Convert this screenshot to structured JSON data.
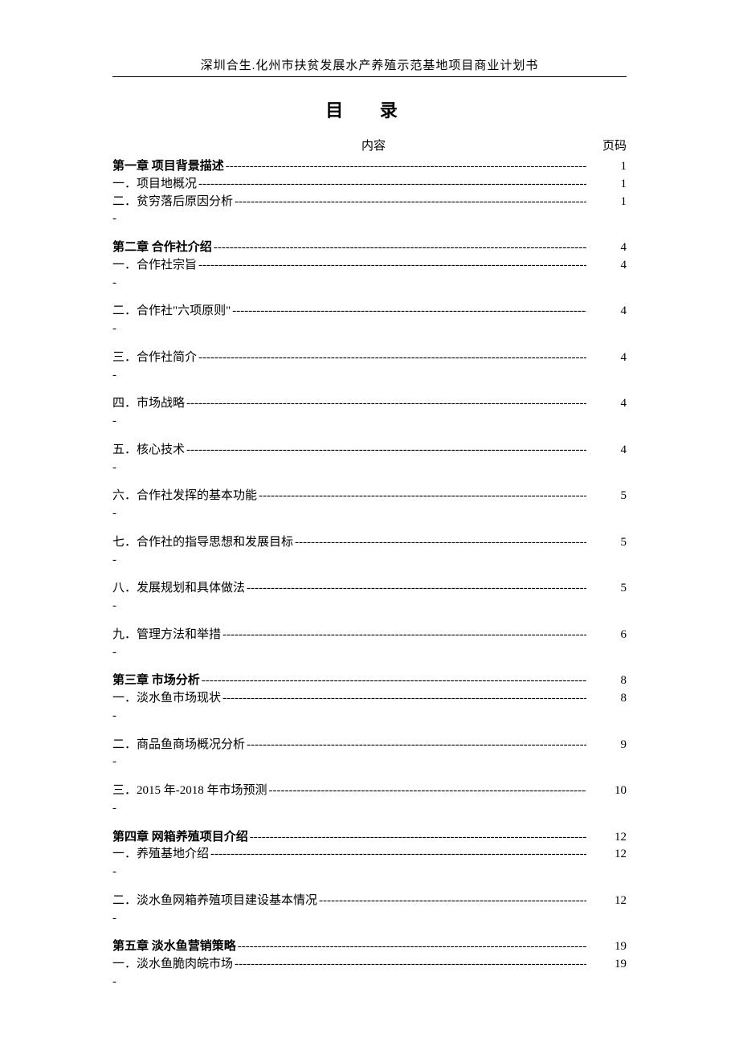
{
  "header": {
    "title": "深圳合生.化州市扶贫发展水产养殖示范基地项目商业计划书"
  },
  "mainTitle": "目  录",
  "columnHeaders": {
    "content": "内容",
    "page": "页码"
  },
  "entries": [
    {
      "label": "第一章  项目背景描述",
      "page": "1",
      "bold": true,
      "trailingDash": false,
      "gapAfter": "none"
    },
    {
      "label": "一．项目地概况",
      "page": "1",
      "bold": false,
      "trailingDash": false,
      "gapAfter": "none"
    },
    {
      "label": "二．贫穷落后原因分析",
      "page": "1",
      "bold": false,
      "trailingDash": true,
      "gapAfter": "medium"
    },
    {
      "label": "第二章  合作社介绍",
      "page": "4",
      "bold": true,
      "trailingDash": false,
      "gapAfter": "none"
    },
    {
      "label": "一．合作社宗旨",
      "page": "4",
      "bold": false,
      "trailingDash": true,
      "gapAfter": "medium"
    },
    {
      "label": "二．合作社\"六项原则\"",
      "page": "4",
      "bold": false,
      "trailingDash": true,
      "gapAfter": "medium"
    },
    {
      "label": "三．合作社简介",
      "page": "4",
      "bold": false,
      "trailingDash": true,
      "gapAfter": "medium"
    },
    {
      "label": "四．市场战略",
      "page": "4",
      "bold": false,
      "trailingDash": true,
      "gapAfter": "medium"
    },
    {
      "label": "五．核心技术",
      "page": "4",
      "bold": false,
      "trailingDash": true,
      "gapAfter": "medium"
    },
    {
      "label": "六．合作社发挥的基本功能",
      "page": "5",
      "bold": false,
      "trailingDash": true,
      "gapAfter": "medium"
    },
    {
      "label": "七．合作社的指导思想和发展目标",
      "page": "5",
      "bold": false,
      "trailingDash": true,
      "gapAfter": "medium"
    },
    {
      "label": "八．发展规划和具体做法",
      "page": "5",
      "bold": false,
      "trailingDash": true,
      "gapAfter": "medium"
    },
    {
      "label": "九．管理方法和举措",
      "page": "6",
      "bold": false,
      "trailingDash": true,
      "gapAfter": "medium"
    },
    {
      "label": "第三章  市场分析",
      "page": "8",
      "bold": true,
      "trailingDash": false,
      "gapAfter": "none"
    },
    {
      "label": "一．淡水鱼市场现状",
      "page": "8",
      "bold": false,
      "trailingDash": true,
      "gapAfter": "medium"
    },
    {
      "label": "二．商品鱼商场概况分析",
      "page": "9",
      "bold": false,
      "trailingDash": true,
      "gapAfter": "medium"
    },
    {
      "label": "三．2015 年-2018 年市场预测",
      "page": "10",
      "bold": false,
      "trailingDash": true,
      "gapAfter": "medium"
    },
    {
      "label": "第四章  网箱养殖项目介绍",
      "page": "12",
      "bold": true,
      "trailingDash": false,
      "gapAfter": "none"
    },
    {
      "label": "一．养殖基地介绍",
      "page": "12",
      "bold": false,
      "trailingDash": true,
      "gapAfter": "medium"
    },
    {
      "label": "二．淡水鱼网箱养殖项目建设基本情况",
      "page": "12",
      "bold": false,
      "trailingDash": true,
      "gapAfter": "medium"
    },
    {
      "label": "第五章  淡水鱼营销策略",
      "page": "19",
      "bold": true,
      "trailingDash": false,
      "gapAfter": "none"
    },
    {
      "label": "一．淡水鱼脆肉皖市场",
      "page": "19",
      "bold": false,
      "trailingDash": true,
      "gapAfter": "none"
    }
  ],
  "style": {
    "pageWidth": 920,
    "pageHeight": 1302,
    "background": "#ffffff",
    "textColor": "#000000",
    "headerFontSize": 15,
    "titleFontSize": 22,
    "bodyFontSize": 15,
    "dashFill": "---------------------------------------------------------------------------------------------------------",
    "trailingDashChar": "-"
  }
}
